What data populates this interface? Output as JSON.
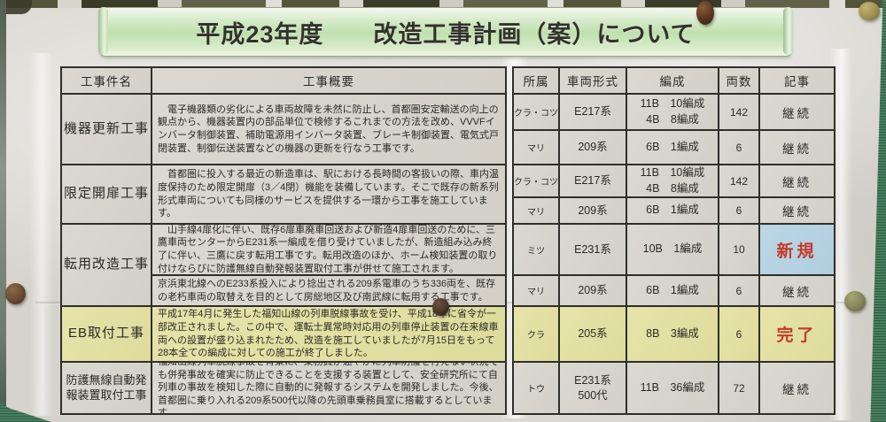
{
  "banner": {
    "title": "平成23年度　　改造工事計画（案）について"
  },
  "table": {
    "headers": {
      "work_name": "工事件名",
      "work_overview": "工事概要",
      "depot": "所属",
      "car_type": "車両形式",
      "formation": "編成",
      "car_count": "両数",
      "note": "記事"
    },
    "works": [
      {
        "name": "機器更新工事",
        "overview": "　電子機器類の劣化による車両故障を未然に防止し、首都圏安定輸送の向上の観点から、機器装置内の部品単位で検修するこれまでの方法を改め、VVVFインバータ制御装置、補助電源用インバータ装置、ブレーキ制御装置、電気式戸閉装置、制御伝送装置などの機器の更新を行なう工事です。",
        "fleets": [
          {
            "depot": "クラ・コツ",
            "car_type1": "E217系",
            "car_type2": "",
            "formation1": "11B　10編成",
            "formation2": "4B　8編成",
            "car_count": "142",
            "note": "継続"
          },
          {
            "depot": "マリ",
            "car_type1": "209系",
            "car_type2": "",
            "formation1": "6B　1編成",
            "formation2": "",
            "car_count": "6",
            "note": "継続"
          }
        ]
      },
      {
        "name": "限定開扉工事",
        "overview": "　首都圏に投入する最近の新造車は、駅における長時間の客扱いの際、車内温度保持のため限定開扉（3／4閉）機能を装備しています。そこで既存の新系列形式車両についても同様のサービスを提供する一環から工事を施工しています。",
        "fleets": [
          {
            "depot": "クラ・コツ",
            "car_type1": "E217系",
            "car_type2": "",
            "formation1": "11B　10編成",
            "formation2": "4B　8編成",
            "car_count": "142",
            "note": "継続"
          },
          {
            "depot": "マリ",
            "car_type1": "209系",
            "car_type2": "",
            "formation1": "6B　1編成",
            "formation2": "",
            "car_count": "6",
            "note": "継続"
          }
        ]
      },
      {
        "name": "転用改造工事",
        "segments": [
          {
            "overview": "　山手線4扉化に伴い、既存6扉車廃車回送および新造4扉車回送のために、三鷹車両センターからE231系一編成を借り受けていましたが、新造組み込み終了に伴い、三鷹に戻す転用工事です。転用改造のほか、ホーム検知装置の取り付けならびに防護無線自動発報装置取付工事が併せて施工されます。",
            "fleet": {
              "depot": "ミツ",
              "car_type1": "E231系",
              "car_type2": "",
              "formation1": "10B　1編成",
              "formation2": "",
              "car_count": "10",
              "note": "新規"
            }
          },
          {
            "overview": "京浜東北線へのE233系投入により捻出される209系電車のうち336両を、既存の老朽車両の取替えを目的として房総地区及び南武線に転用する工事です。",
            "fleet": {
              "depot": "マリ",
              "car_type1": "209系",
              "car_type2": "",
              "formation1": "6B　1編成",
              "formation2": "",
              "car_count": "6",
              "note": "継続"
            }
          }
        ]
      },
      {
        "name": "EB取付工事",
        "overview": "平成17年4月に発生した福知山線の列車脱線事故を受け、平成18年に省令が一部改正されました。この中で、運転士異常時対応用の列車停止装置の在来線車両への設置が盛り込まれたため、改造を施工していましたが7月15日をもって28本全ての編成に対しての施工が終了しました。",
        "fleets": [
          {
            "depot": "クラ",
            "car_type1": "205系",
            "car_type2": "",
            "formation1": "8B　3編成",
            "formation2": "",
            "car_count": "6",
            "note": "完了"
          }
        ]
      },
      {
        "name": "防護無線自動発報装置取付工事",
        "overview": "福知山線列車脱線事故を背景に、乗務員が速やかに列車防護を行えない状況でも併発事故を確実に防止できることを支援する装置として、安全研究所にて自列車の事故を検知した際に自動的に発報するシステムを開発しました。今後、首都圏に乗り入れる209系500代以降の先頭車乗務員室に搭載するとしています。",
        "fleets": [
          {
            "depot": "トウ",
            "car_type1": "E231系",
            "car_type2": "500代",
            "formation1": "11B　36編成",
            "formation2": "",
            "car_count": "72",
            "note": "継続"
          }
        ]
      }
    ]
  },
  "colors": {
    "board_green": "#47805f",
    "banner_green": "#bfe0ae",
    "paper": "#d5d2cb",
    "highlight_yellow": "#dedc9c",
    "highlight_blue": "#b5d2e2",
    "status_red": "#c53a29",
    "pin_brown": "#5a3420",
    "pin_gold": "#a0914f",
    "pin_olive": "#85855c"
  }
}
